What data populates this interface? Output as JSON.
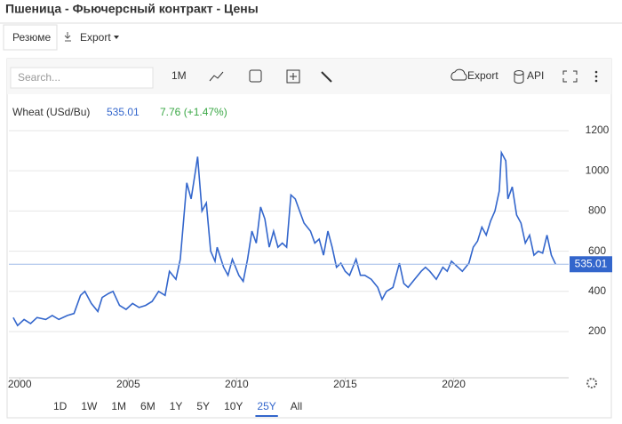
{
  "page": {
    "title": "Пшеница - Фьючерсный контракт - Цены",
    "tabs": [
      "Резюме",
      "Export"
    ],
    "toolbar": {
      "search": "Search...",
      "interval": "1M",
      "export": "Export",
      "api": "API"
    },
    "ranges": [
      "1D",
      "1W",
      "1M",
      "6M",
      "1Y",
      "5Y",
      "10Y",
      "25Y",
      "All"
    ],
    "selected_range_index": 7
  },
  "chart_data": {
    "type": "line",
    "change_label": "7.76 (+1.47%)",
    "change_color": "#3aa745",
    "series": [
      {
        "name": "Wheat (USd/Bu)",
        "color": "#3366cc",
        "x": [
          1999.7,
          1999.9,
          2000.2,
          2000.5,
          2000.8,
          2001.2,
          2001.5,
          2001.8,
          2002.2,
          2002.5,
          2002.8,
          2003.0,
          2003.3,
          2003.6,
          2003.8,
          2004.1,
          2004.3,
          2004.6,
          2004.9,
          2005.2,
          2005.5,
          2005.8,
          2006.1,
          2006.4,
          2006.7,
          2006.9,
          2007.2,
          2007.4,
          2007.7,
          2007.9,
          2008.1,
          2008.2,
          2008.4,
          2008.6,
          2008.8,
          2009.0,
          2009.1,
          2009.4,
          2009.6,
          2009.8,
          2010.1,
          2010.3,
          2010.5,
          2010.7,
          2010.9,
          2011.1,
          2011.3,
          2011.5,
          2011.7,
          2011.9,
          2012.1,
          2012.3,
          2012.5,
          2012.7,
          2012.9,
          2013.1,
          2013.4,
          2013.6,
          2013.8,
          2014.0,
          2014.2,
          2014.4,
          2014.6,
          2014.8,
          2015.0,
          2015.2,
          2015.5,
          2015.7,
          2015.9,
          2016.2,
          2016.5,
          2016.7,
          2016.9,
          2017.2,
          2017.5,
          2017.7,
          2017.9,
          2018.2,
          2018.5,
          2018.7,
          2018.9,
          2019.2,
          2019.5,
          2019.7,
          2019.9,
          2020.2,
          2020.4,
          2020.7,
          2020.9,
          2021.1,
          2021.3,
          2021.5,
          2021.7,
          2021.9,
          2022.1,
          2022.2,
          2022.4,
          2022.5,
          2022.7,
          2022.9,
          2023.1,
          2023.3,
          2023.5,
          2023.7,
          2023.9,
          2024.1,
          2024.3,
          2024.5,
          2024.7
        ],
        "values": [
          270,
          230,
          260,
          240,
          270,
          260,
          280,
          260,
          280,
          290,
          380,
          400,
          340,
          300,
          370,
          390,
          400,
          330,
          310,
          340,
          320,
          330,
          350,
          400,
          380,
          500,
          460,
          560,
          940,
          860,
          1000,
          1070,
          800,
          840,
          600,
          550,
          620,
          520,
          480,
          560,
          480,
          450,
          560,
          700,
          640,
          820,
          760,
          620,
          700,
          620,
          640,
          620,
          880,
          860,
          800,
          740,
          700,
          640,
          660,
          580,
          700,
          620,
          520,
          540,
          500,
          480,
          560,
          480,
          480,
          460,
          420,
          360,
          400,
          420,
          540,
          440,
          420,
          460,
          500,
          520,
          500,
          460,
          520,
          500,
          550,
          520,
          500,
          540,
          620,
          650,
          720,
          680,
          750,
          800,
          900,
          1090,
          1050,
          860,
          920,
          780,
          740,
          640,
          680,
          580,
          600,
          590,
          680,
          580,
          535.01
        ]
      }
    ],
    "xlim": [
      1999.5,
      2025.3
    ],
    "xticks": [
      2000,
      2005,
      2010,
      2015,
      2020
    ],
    "ylim": [
      -30,
      1275
    ],
    "yticks": [
      200,
      400,
      600,
      800,
      1000,
      1200
    ],
    "grid": true
  }
}
